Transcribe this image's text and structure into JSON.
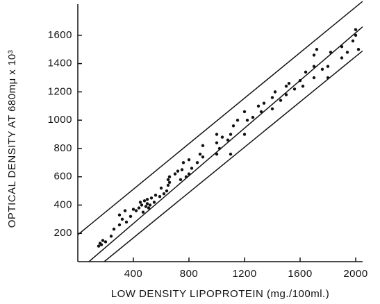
{
  "chart_data": {
    "type": "scatter",
    "xlabel": "LOW DENSITY LIPOPROTEIN (mg./100ml.)",
    "ylabel": "OPTICAL DENSITY AT 680mμ x 10³",
    "xlim": [
      0,
      2050
    ],
    "ylim": [
      0,
      1820
    ],
    "xticks": [
      400,
      800,
      1200,
      1600,
      2000
    ],
    "yticks": [
      200,
      400,
      600,
      800,
      1000,
      1200,
      1400,
      1600
    ],
    "color": "#111111",
    "x": [
      150,
      160,
      170,
      180,
      200,
      240,
      260,
      300,
      300,
      320,
      340,
      350,
      380,
      400,
      420,
      440,
      450,
      460,
      470,
      480,
      490,
      500,
      500,
      510,
      520,
      530,
      550,
      560,
      590,
      600,
      620,
      640,
      650,
      650,
      660,
      660,
      700,
      720,
      740,
      750,
      760,
      780,
      800,
      800,
      820,
      860,
      880,
      900,
      900,
      1000,
      1000,
      1000,
      1020,
      1040,
      1080,
      1100,
      1100,
      1120,
      1150,
      1200,
      1200,
      1220,
      1260,
      1300,
      1320,
      1340,
      1400,
      1400,
      1420,
      1460,
      1500,
      1500,
      1520,
      1560,
      1600,
      1620,
      1640,
      1700,
      1700,
      1700,
      1720,
      1760,
      1800,
      1800,
      1820,
      1900,
      1900,
      1940,
      1980,
      2000,
      2000,
      2020
    ],
    "y": [
      110,
      130,
      120,
      150,
      140,
      180,
      230,
      260,
      330,
      300,
      360,
      280,
      320,
      370,
      360,
      380,
      420,
      400,
      350,
      430,
      390,
      410,
      440,
      380,
      400,
      450,
      420,
      470,
      460,
      520,
      480,
      500,
      540,
      580,
      560,
      600,
      620,
      640,
      580,
      650,
      700,
      600,
      620,
      720,
      660,
      700,
      760,
      740,
      820,
      760,
      840,
      900,
      800,
      880,
      860,
      760,
      900,
      960,
      1000,
      900,
      1060,
      1000,
      1020,
      1100,
      1060,
      1120,
      1080,
      1160,
      1200,
      1140,
      1180,
      1240,
      1260,
      1220,
      1280,
      1240,
      1340,
      1300,
      1380,
      1460,
      1500,
      1360,
      1300,
      1380,
      1480,
      1440,
      1520,
      1480,
      1560,
      1600,
      1640,
      1500
    ],
    "lines": [
      {
        "x": [
          0,
          2050
        ],
        "y": [
          190,
          1840
        ]
      },
      {
        "x": [
          80,
          2050
        ],
        "y": [
          0,
          1660
        ]
      },
      {
        "x": [
          190,
          2050
        ],
        "y": [
          0,
          1490
        ]
      }
    ]
  }
}
